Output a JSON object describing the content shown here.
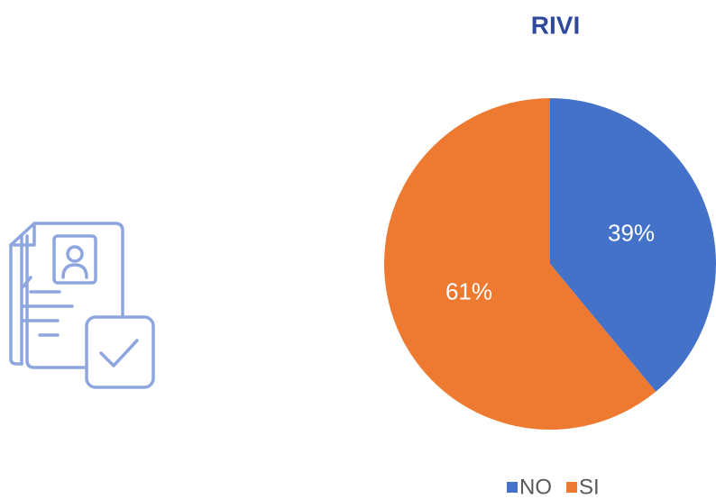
{
  "chart_data": {
    "type": "pie",
    "title": "RIVI",
    "categories": [
      "NO",
      "SI"
    ],
    "values": [
      39,
      61
    ],
    "value_labels": [
      "39%",
      "61%"
    ],
    "colors": [
      "#4572c9",
      "#ed7a30"
    ],
    "legend": "bottom"
  }
}
